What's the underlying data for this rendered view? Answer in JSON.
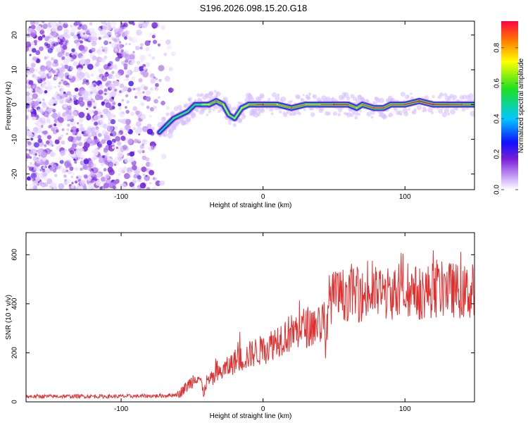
{
  "title": "S196.2026.098.15.20.G18",
  "chart_data": [
    {
      "type": "heatmap",
      "xlabel": "Height of straight line (km)",
      "ylabel": "Frequency (Hz)",
      "xlim": [
        -167,
        149
      ],
      "ylim": [
        -24.5,
        24
      ],
      "xticks": [
        "-100",
        "0",
        "100"
      ],
      "yticks": [
        "20",
        "10",
        "0",
        "-10",
        "-20"
      ],
      "colorbar": {
        "label": "Normalized spectral amplitude",
        "range": [
          0,
          0.95
        ],
        "ticks": [
          "0.0",
          "0.2",
          "0.4",
          "0.6",
          "0.8"
        ]
      },
      "noise_region_x": [
        -167,
        -60
      ],
      "ridge": {
        "x": [
          -73,
          -68,
          -63,
          -58,
          -53,
          -48,
          -43,
          -38,
          -33,
          -28,
          -24,
          -20,
          -15,
          -10,
          -5,
          0,
          10,
          20,
          30,
          40,
          50,
          60,
          66,
          70,
          78,
          85,
          90,
          100,
          110,
          120,
          130,
          140,
          149
        ],
        "y": [
          -8,
          -6,
          -4,
          -3,
          -2,
          0,
          0,
          0,
          1,
          0,
          -3,
          -4,
          -1,
          0,
          0,
          0,
          0,
          -1,
          0,
          0,
          0,
          0,
          -1,
          0,
          -1,
          -1,
          0,
          0,
          1,
          0,
          0,
          0,
          0
        ],
        "amplitude": [
          0.5,
          0.55,
          0.6,
          0.6,
          0.6,
          0.55,
          0.65,
          0.75,
          0.9,
          0.75,
          0.65,
          0.65,
          0.7,
          0.8,
          0.85,
          0.95,
          0.75,
          0.9,
          0.8,
          0.8,
          0.95,
          0.9,
          0.75,
          0.85,
          0.9,
          0.9,
          0.85,
          0.9,
          0.95,
          0.95,
          0.9,
          0.9,
          0.8
        ]
      }
    },
    {
      "type": "line",
      "xlabel": "Height of straight line (km)",
      "ylabel": "SNR (10 * v/v)",
      "xlim": [
        -167,
        149
      ],
      "ylim": [
        0,
        690
      ],
      "xticks": [
        "-100",
        "0",
        "100"
      ],
      "yticks": [
        "600",
        "400",
        "200",
        "0"
      ],
      "series": [
        {
          "name": "SNR",
          "color": "#e03030",
          "x": [
            -167,
            -150,
            -130,
            -110,
            -90,
            -70,
            -60,
            -55,
            -50,
            -47,
            -44,
            -42,
            -40,
            -35,
            -30,
            -25,
            -20,
            -15,
            -10,
            -5,
            0,
            5,
            10,
            15,
            20,
            25,
            30,
            35,
            40,
            43,
            44,
            46,
            50,
            60,
            70,
            80,
            90,
            100,
            110,
            120,
            130,
            140,
            149
          ],
          "y": [
            22,
            22,
            23,
            22,
            23,
            25,
            30,
            55,
            85,
            110,
            90,
            30,
            80,
            95,
            120,
            140,
            165,
            175,
            190,
            205,
            210,
            230,
            255,
            270,
            280,
            295,
            305,
            310,
            320,
            330,
            180,
            415,
            430,
            440,
            430,
            445,
            440,
            450,
            445,
            455,
            460,
            450,
            440
          ]
        }
      ]
    }
  ]
}
